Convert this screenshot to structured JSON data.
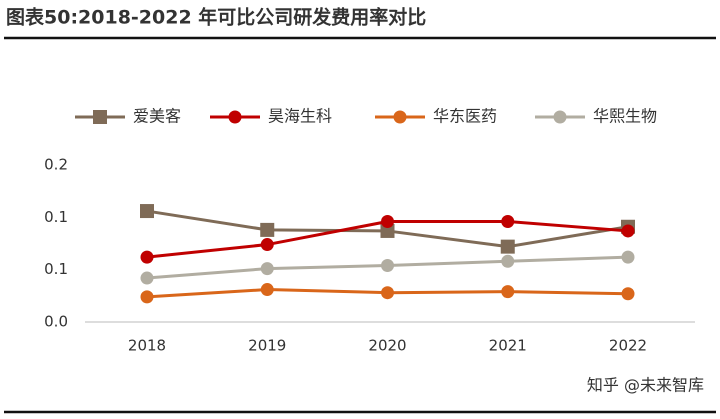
{
  "chart_data": {
    "type": "line",
    "title": "图表50:2018-2022 年可比公司研发费用率对比",
    "categories": [
      "2018",
      "2019",
      "2020",
      "2021",
      "2022"
    ],
    "series": [
      {
        "name": "爱美客",
        "color": "#7f6b57",
        "marker": "square",
        "values": [
          0.106,
          0.088,
          0.087,
          0.072,
          0.091
        ]
      },
      {
        "name": "昊海生科",
        "color": "#c00000",
        "marker": "circle",
        "values": [
          0.062,
          0.074,
          0.096,
          0.096,
          0.087
        ]
      },
      {
        "name": "华东医药",
        "color": "#d9661a",
        "marker": "circle",
        "values": [
          0.024,
          0.031,
          0.028,
          0.029,
          0.027
        ]
      },
      {
        "name": "华熙生物",
        "color": "#b1ada1",
        "marker": "circle",
        "values": [
          0.042,
          0.051,
          0.054,
          0.058,
          0.062
        ]
      }
    ],
    "ylim": [
      0,
      0.15
    ],
    "yticks": [
      {
        "value": 0,
        "label": "0.0"
      },
      {
        "value": 0.05,
        "label": "0.1"
      },
      {
        "value": 0.1,
        "label": "0.1"
      },
      {
        "value": 0.15,
        "label": "0.2"
      }
    ],
    "legend": "top",
    "watermark": "知乎 @未来智库"
  }
}
